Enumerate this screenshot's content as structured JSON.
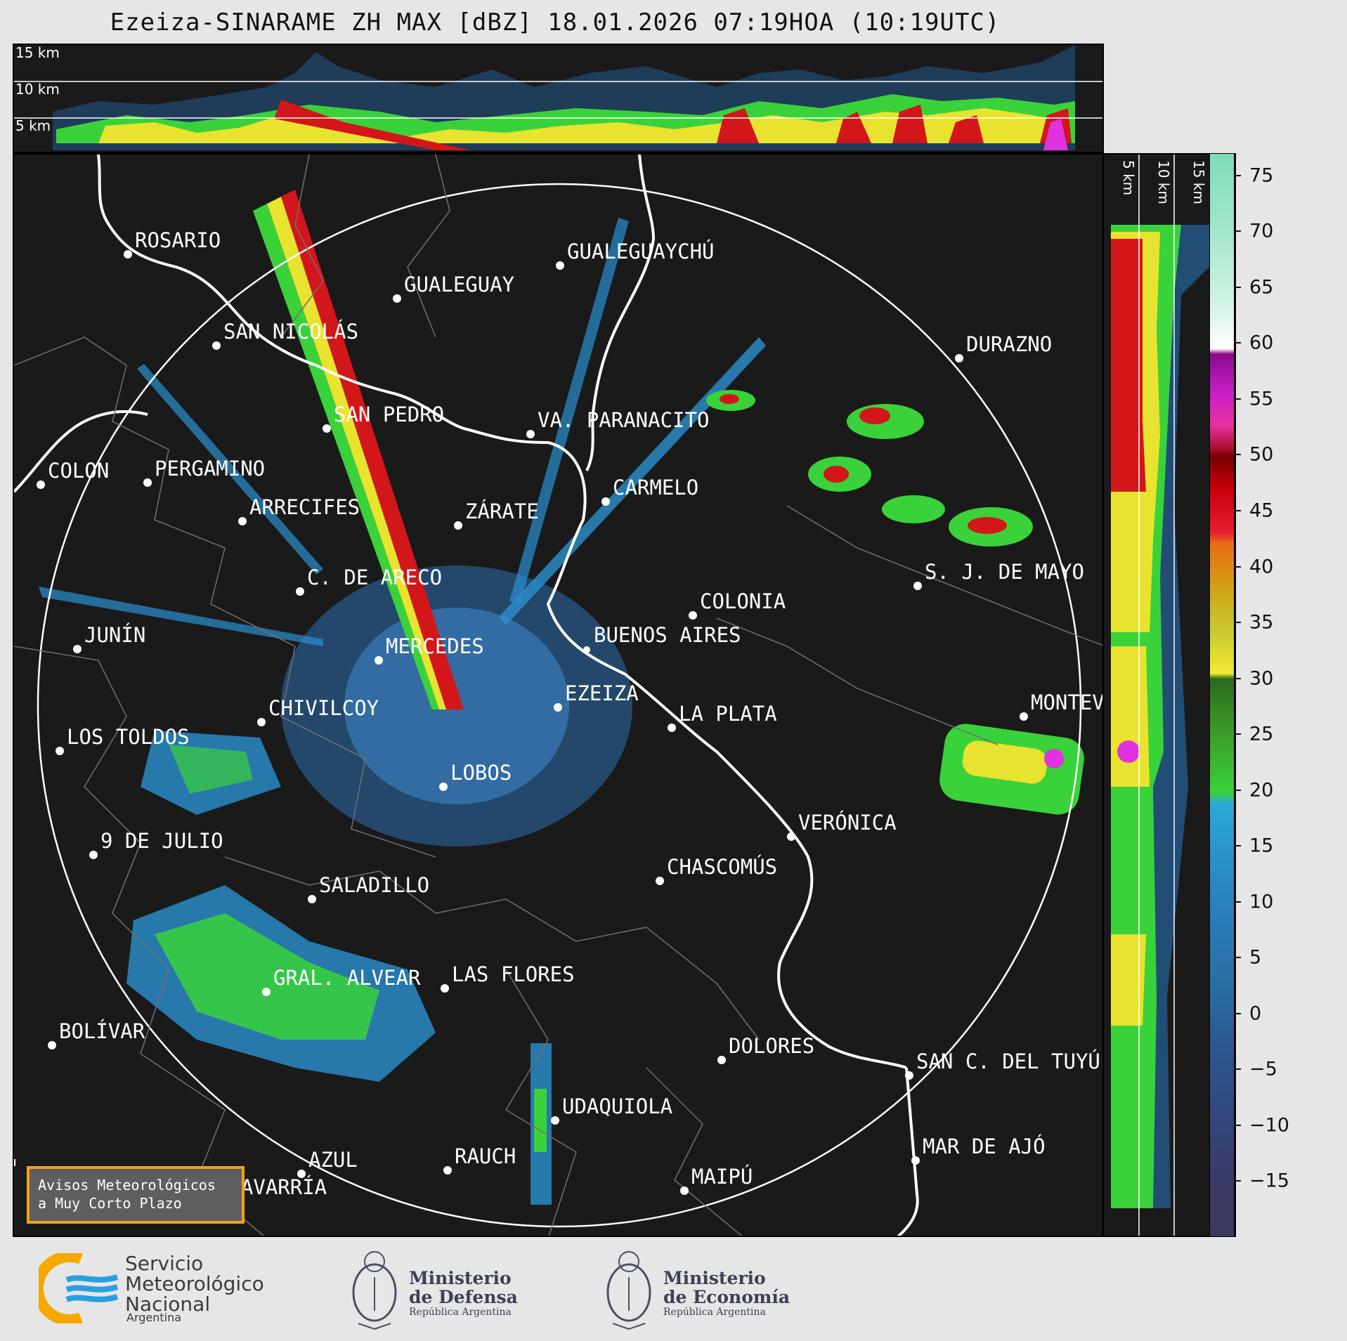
{
  "title": "Ezeiza-SINARAME ZH MAX [dBZ] 18.01.2026 07:19HOA (10:19UTC)",
  "top_panel": {
    "km_labels": [
      "15 km",
      "10 km",
      "5 km"
    ]
  },
  "side_panel": {
    "km_labels": [
      "5 km",
      "10 km",
      "15 km"
    ]
  },
  "colorbar": {
    "ticks": [
      "75",
      "70",
      "65",
      "60",
      "55",
      "50",
      "45",
      "40",
      "35",
      "30",
      "25",
      "20",
      "15",
      "10",
      "5",
      "0",
      "−5",
      "−10",
      "−15"
    ],
    "range": [
      -20,
      77
    ]
  },
  "cities": [
    {
      "name": "ROSARIO"
    },
    {
      "name": "GUALEGUAYCHÚ"
    },
    {
      "name": "GUALEGUAY"
    },
    {
      "name": "SAN NICOLÁS"
    },
    {
      "name": "DURAZNO"
    },
    {
      "name": "SAN PEDRO"
    },
    {
      "name": "VA. PARANACITO"
    },
    {
      "name": "COLON"
    },
    {
      "name": "PERGAMINO"
    },
    {
      "name": "CARMELO"
    },
    {
      "name": "ARRECIFES"
    },
    {
      "name": "ZÁRATE"
    },
    {
      "name": "S. J. DE MAYO"
    },
    {
      "name": "C. DE ARECO"
    },
    {
      "name": "COLONIA"
    },
    {
      "name": "JUNÍN"
    },
    {
      "name": "BUENOS AIRES"
    },
    {
      "name": "MERCEDES"
    },
    {
      "name": "EZEIZA"
    },
    {
      "name": "MONTEVIDEO"
    },
    {
      "name": "CHIVILCOY"
    },
    {
      "name": "LA PLATA"
    },
    {
      "name": "LOS TOLDOS"
    },
    {
      "name": "LOBOS"
    },
    {
      "name": "VERÓNICA"
    },
    {
      "name": "9 DE JULIO"
    },
    {
      "name": "CHASCOMÚS"
    },
    {
      "name": "SALADILLO"
    },
    {
      "name": "GRAL. ALVEAR"
    },
    {
      "name": "LAS FLORES"
    },
    {
      "name": "BOLÍVAR"
    },
    {
      "name": "DOLORES"
    },
    {
      "name": "SAN C. DEL TUYÚ"
    },
    {
      "name": "UDAQUIOLA"
    },
    {
      "name": "MAR DE AJÓ"
    },
    {
      "name": "AZUL"
    },
    {
      "name": "RAUCH"
    },
    {
      "name": "OLAVARRÍA"
    },
    {
      "name": "MAIPÚ"
    }
  ],
  "avisos": {
    "line1": "Avisos Meteorológicos",
    "line2": "a Muy Corto Plazo"
  },
  "logos": {
    "smn": {
      "line1": "Servicio",
      "line2": "Meteorológico",
      "line3": "Nacional",
      "sub": "Argentina"
    },
    "defensa": {
      "line1": "Ministerio",
      "line2": "de Defensa",
      "sub": "República Argentina"
    },
    "economia": {
      "line1": "Ministerio",
      "line2": "de Economía",
      "sub": "República Argentina"
    }
  }
}
